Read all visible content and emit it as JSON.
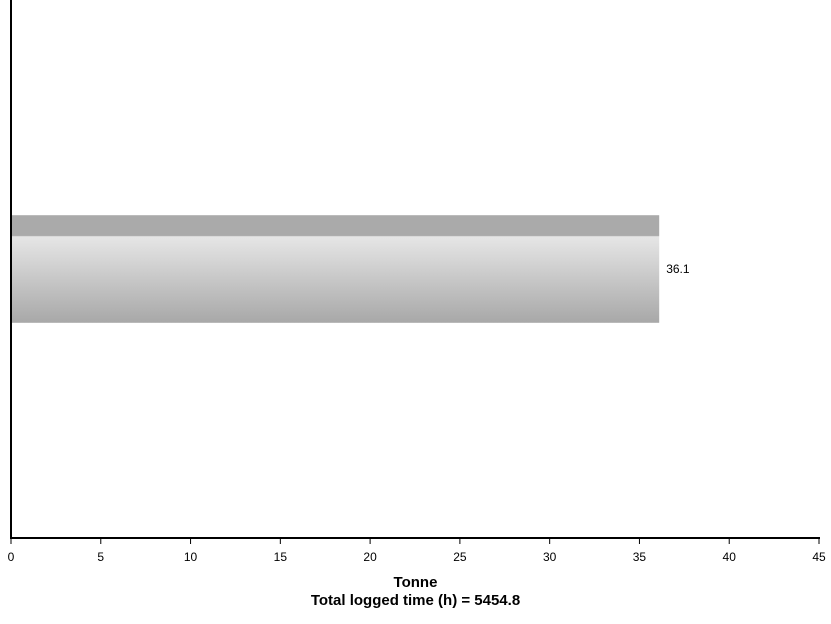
{
  "chart_data": {
    "type": "bar",
    "orientation": "horizontal",
    "categories": [
      ""
    ],
    "values": [
      36.1
    ],
    "value_labels": [
      "36.1"
    ],
    "xlabel": "Tonne",
    "subtitle": "Total logged time (h) = 5454.8",
    "xlim": [
      0,
      45
    ],
    "xticks": [
      0,
      5,
      10,
      15,
      20,
      25,
      30,
      35,
      40,
      45
    ],
    "grid": false,
    "legend": "none",
    "colors": {
      "bar_top": "#aaaaaa",
      "bar_highlight": "#e6e6e6",
      "bar_bottom": "#a8a8a8",
      "axis": "#000000"
    }
  }
}
